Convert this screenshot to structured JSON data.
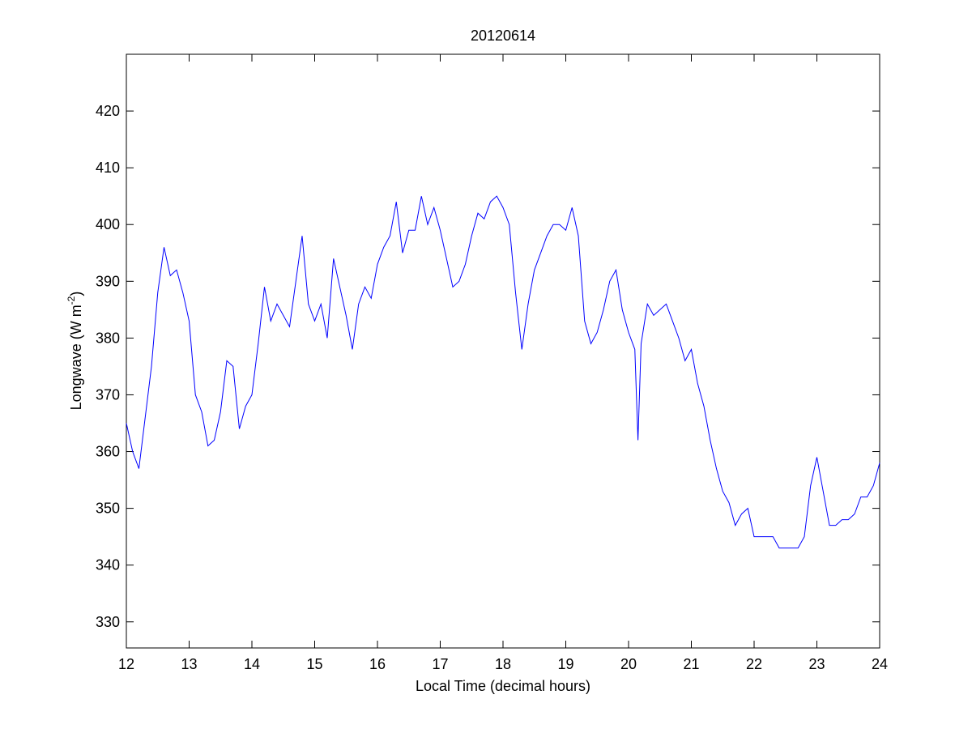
{
  "chart_data": {
    "type": "line",
    "title": "20120614",
    "xlabel": "Local Time (decimal hours)",
    "ylabel": {
      "parts": [
        "Longwave (W m",
        "-2",
        ")"
      ]
    },
    "x": [
      12.0,
      12.1,
      12.2,
      12.3,
      12.4,
      12.5,
      12.6,
      12.7,
      12.8,
      12.9,
      13.0,
      13.1,
      13.2,
      13.3,
      13.4,
      13.5,
      13.6,
      13.7,
      13.8,
      13.9,
      14.0,
      14.1,
      14.2,
      14.3,
      14.4,
      14.5,
      14.6,
      14.7,
      14.8,
      14.9,
      15.0,
      15.1,
      15.2,
      15.3,
      15.4,
      15.5,
      15.6,
      15.7,
      15.8,
      15.9,
      16.0,
      16.1,
      16.2,
      16.3,
      16.4,
      16.5,
      16.6,
      16.7,
      16.8,
      16.9,
      17.0,
      17.1,
      17.2,
      17.3,
      17.4,
      17.5,
      17.6,
      17.7,
      17.8,
      17.9,
      18.0,
      18.1,
      18.2,
      18.3,
      18.4,
      18.5,
      18.6,
      18.7,
      18.8,
      18.9,
      19.0,
      19.1,
      19.2,
      19.3,
      19.4,
      19.5,
      19.6,
      19.7,
      19.8,
      19.9,
      20.0,
      20.1,
      20.15,
      20.2,
      20.3,
      20.4,
      20.5,
      20.6,
      20.7,
      20.8,
      20.9,
      21.0,
      21.1,
      21.2,
      21.3,
      21.4,
      21.5,
      21.6,
      21.7,
      21.8,
      21.9,
      22.0,
      22.1,
      22.2,
      22.3,
      22.4,
      22.5,
      22.6,
      22.7,
      22.8,
      22.9,
      23.0,
      23.1,
      23.2,
      23.3,
      23.4,
      23.5,
      23.6,
      23.7,
      23.8,
      23.9,
      24.0
    ],
    "series": [
      {
        "color": "#0000ff",
        "values": [
          365,
          360,
          357,
          366,
          375,
          388,
          396,
          391,
          392,
          388,
          383,
          370,
          367,
          361,
          362,
          367,
          376,
          375,
          364,
          368,
          370,
          379,
          389,
          383,
          386,
          384,
          382,
          390,
          398,
          386,
          383,
          386,
          380,
          394,
          389,
          384,
          378,
          386,
          389,
          387,
          393,
          396,
          398,
          404,
          395,
          399,
          399,
          405,
          400,
          403,
          399,
          394,
          389,
          390,
          393,
          398,
          402,
          401,
          404,
          405,
          403,
          400,
          388,
          378,
          386,
          392,
          395,
          398,
          400,
          400,
          399,
          403,
          398,
          383,
          379,
          381,
          385,
          390,
          392,
          385,
          381,
          378,
          362,
          379,
          386,
          384,
          385,
          386,
          383,
          380,
          376,
          378,
          372,
          368,
          362,
          357,
          353,
          351,
          347,
          349,
          350,
          345,
          345,
          345,
          345,
          343,
          343,
          343,
          343,
          345,
          354,
          359,
          353,
          347,
          347,
          348,
          348,
          349,
          352,
          352,
          354,
          358
        ]
      }
    ],
    "xlim": [
      12,
      24
    ],
    "xticks": [
      12,
      13,
      14,
      15,
      16,
      17,
      18,
      19,
      20,
      21,
      22,
      23,
      24
    ],
    "ylim": [
      325.4,
      430
    ],
    "yticks": [
      330,
      340,
      350,
      360,
      370,
      380,
      390,
      400,
      410,
      420
    ]
  }
}
